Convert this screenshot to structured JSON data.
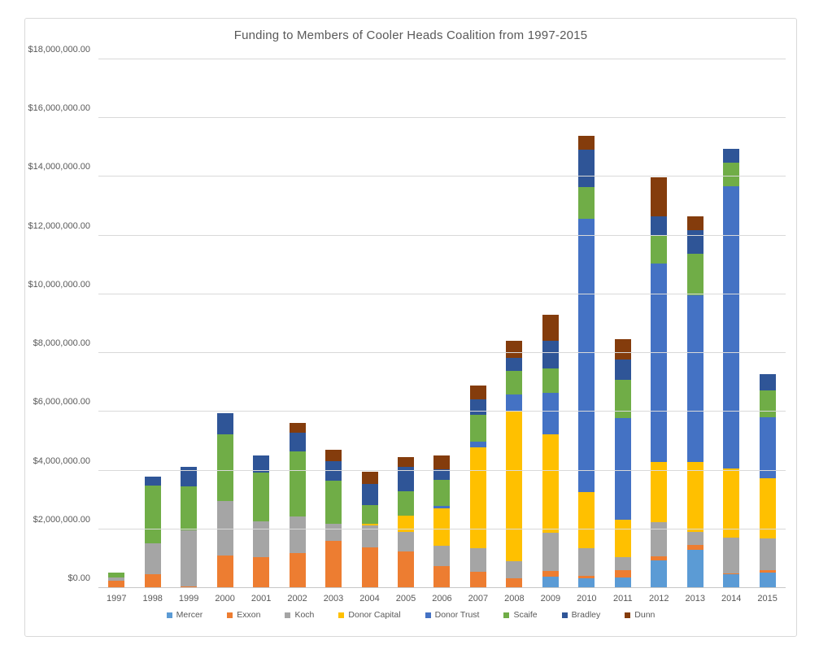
{
  "chart_data": {
    "type": "bar",
    "stacked": true,
    "title": "Funding to Members of Cooler Heads Coalition from 1997-2015",
    "grid": true,
    "legend_position": "bottom",
    "categories": [
      "1997",
      "1998",
      "1999",
      "2000",
      "2001",
      "2002",
      "2003",
      "2004",
      "2005",
      "2006",
      "2007",
      "2008",
      "2009",
      "2010",
      "2011",
      "2012",
      "2013",
      "2014",
      "2015"
    ],
    "y_axis": {
      "min": 0,
      "max": 18000000,
      "step": 2000000,
      "tick_labels": [
        "$0.00",
        "$2,000,000.00",
        "$4,000,000.00",
        "$6,000,000.00",
        "$8,000,000.00",
        "$10,000,000.00",
        "$12,000,000.00",
        "$14,000,000.00",
        "$16,000,000.00",
        "$18,000,000.00"
      ]
    },
    "series": [
      {
        "name": "Mercer",
        "color": "#5B9BD5",
        "values": [
          0,
          0,
          0,
          0,
          0,
          0,
          0,
          0,
          0,
          0,
          0,
          0,
          380000,
          330000,
          350000,
          940000,
          1300000,
          460000,
          530000
        ]
      },
      {
        "name": "Exxon",
        "color": "#ED7D31",
        "values": [
          260000,
          470000,
          50000,
          1100000,
          1050000,
          1190000,
          1600000,
          1380000,
          1260000,
          750000,
          560000,
          330000,
          210000,
          90000,
          260000,
          140000,
          160000,
          50000,
          70000
        ]
      },
      {
        "name": "Koch",
        "color": "#A5A5A5",
        "values": [
          110000,
          1060000,
          1930000,
          1870000,
          1230000,
          1250000,
          590000,
          750000,
          650000,
          690000,
          810000,
          580000,
          1300000,
          930000,
          430000,
          1160000,
          440000,
          1200000,
          1090000
        ]
      },
      {
        "name": "Donor Capital",
        "color": "#FFC000",
        "values": [
          0,
          0,
          0,
          0,
          0,
          0,
          0,
          70000,
          550000,
          1280000,
          3410000,
          5090000,
          3350000,
          1910000,
          1280000,
          2060000,
          2390000,
          2350000,
          2060000
        ]
      },
      {
        "name": "Donor Trust",
        "color": "#4472C4",
        "values": [
          0,
          0,
          0,
          0,
          0,
          0,
          0,
          0,
          0,
          80000,
          200000,
          580000,
          1410000,
          9300000,
          3470000,
          6740000,
          5680000,
          9630000,
          2080000
        ]
      },
      {
        "name": "Scaife",
        "color": "#70AD47",
        "values": [
          150000,
          1960000,
          1480000,
          2270000,
          1640000,
          2220000,
          1460000,
          630000,
          830000,
          880000,
          930000,
          810000,
          830000,
          1080000,
          1310000,
          940000,
          1420000,
          790000,
          900000
        ]
      },
      {
        "name": "Bradley",
        "color": "#2F5597",
        "values": [
          0,
          300000,
          680000,
          710000,
          600000,
          620000,
          670000,
          720000,
          830000,
          370000,
          510000,
          440000,
          930000,
          1280000,
          680000,
          690000,
          790000,
          480000,
          560000
        ]
      },
      {
        "name": "Dunn",
        "color": "#843C0C",
        "values": [
          0,
          0,
          0,
          0,
          0,
          350000,
          400000,
          410000,
          350000,
          460000,
          480000,
          600000,
          890000,
          480000,
          710000,
          1330000,
          480000,
          0,
          0
        ]
      }
    ]
  }
}
